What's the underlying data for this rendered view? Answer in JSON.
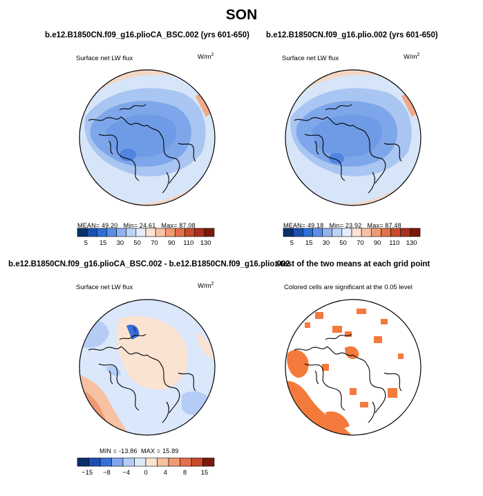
{
  "title": "SON",
  "panels": [
    {
      "title": "b.e12.B1850CN.f09_g16.plioCA_BSC.002 (yrs 601-650)",
      "variable": "Surface net LW flux",
      "units_base": "W/m",
      "units_exp": "2",
      "stats": {
        "mean_label": "MEAN=",
        "mean": "49.20",
        "min_label": "Min=",
        "min": "24.61",
        "max_label": "Max=",
        "max": "87.08"
      },
      "colorbar": {
        "labels": [
          "5",
          "15",
          "30",
          "50",
          "70",
          "90",
          "110",
          "130"
        ],
        "colors": [
          "#08306b",
          "#1c50b0",
          "#2f6fd8",
          "#5b8ee8",
          "#8fb2f0",
          "#bcd3f6",
          "#e3edfb",
          "#fbe3d2",
          "#f6c2a2",
          "#f09a72",
          "#e2704a",
          "#c94a2d",
          "#a8321c",
          "#7a1a0c"
        ]
      }
    },
    {
      "title": "b.e12.B1850CN.f09_g16.plio.002 (yrs 601-650)",
      "variable": "Surface net LW flux",
      "units_base": "W/m",
      "units_exp": "2",
      "stats": {
        "mean_label": "MEAN=",
        "mean": "49.18",
        "min_label": "Min=",
        "min": "23.92",
        "max_label": "Max=",
        "max": "87.48"
      },
      "colorbar": {
        "labels": [
          "5",
          "15",
          "30",
          "50",
          "70",
          "90",
          "110",
          "130"
        ],
        "colors": [
          "#08306b",
          "#1c50b0",
          "#2f6fd8",
          "#5b8ee8",
          "#8fb2f0",
          "#bcd3f6",
          "#e3edfb",
          "#fbe3d2",
          "#f6c2a2",
          "#f09a72",
          "#e2704a",
          "#c94a2d",
          "#a8321c",
          "#7a1a0c"
        ]
      }
    },
    {
      "title": "b.e12.B1850CN.f09_g16.plioCA_BSC.002 - b.e12.B1850CN.f09_g16.plio.002",
      "variable": "Surface net LW flux",
      "units_base": "W/m",
      "units_exp": "2",
      "stats": {
        "min_label": "MIN =",
        "min": "-13.86",
        "max_label": "MAX =",
        "max": "15.89"
      },
      "colorbar": {
        "labels": [
          "−15",
          "−8",
          "−4",
          "0",
          "4",
          "8",
          "15"
        ],
        "colors": [
          "#08306b",
          "#1c50b0",
          "#3a6fd6",
          "#7fa5ee",
          "#b5cdf5",
          "#dbe7fa",
          "#fbe3d2",
          "#f6c2a2",
          "#f09a72",
          "#e2704a",
          "#c94a2d",
          "#7a1a0c"
        ]
      }
    },
    {
      "title": "t-test of the two means at each grid point",
      "note": "Colored cells are significant at the 0.05 level"
    }
  ],
  "colors": {
    "ocean_light": "#cfe0f7",
    "ocean_mid": "#9cbcef",
    "ice_blue": "#6f9be6",
    "deep_blue": "#4f84e0",
    "warm_light": "#f6d2bd",
    "warm_mid": "#f1a987",
    "significant": "#f47a3c",
    "coast": "#000000"
  }
}
